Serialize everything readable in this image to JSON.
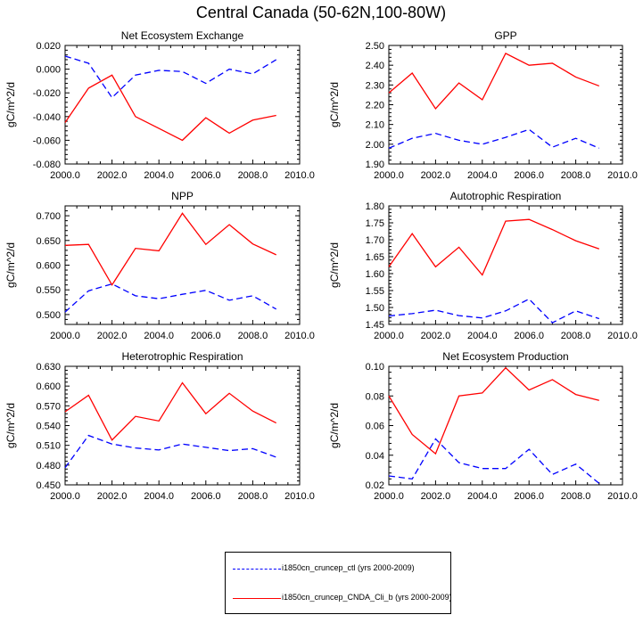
{
  "page_title": "Central Canada (50-62N,100-80W)",
  "series_styles": [
    {
      "color": "#0000ff",
      "dash": "dashed"
    },
    {
      "color": "#ff0000",
      "dash": "solid"
    }
  ],
  "legend": {
    "entries": [
      {
        "label": "i1850cn_cruncep_ctl (yrs 2000-2009)",
        "color": "#0000ff",
        "dash": "dashed"
      },
      {
        "label": "i1850cn_cruncep_CNDA_Cli_b (yrs 2000-2009)",
        "color": "#ff0000",
        "dash": "solid"
      }
    ]
  },
  "chart_data": [
    {
      "type": "line",
      "title": "Net Ecosystem Exchange",
      "ylabel": "gC/m^2/d",
      "xlim": [
        2000,
        2010
      ],
      "ylim": [
        -0.08,
        0.02
      ],
      "xticks": [
        2000,
        2002,
        2004,
        2006,
        2008,
        2010
      ],
      "xtick_labels": [
        "2000.0",
        "2002.0",
        "2004.0",
        "2006.0",
        "2008.0",
        "2010.0"
      ],
      "yticks": [
        -0.08,
        -0.06,
        -0.04,
        -0.02,
        0.0,
        0.02
      ],
      "ytick_labels": [
        "-0.080",
        "-0.060",
        "-0.040",
        "-0.020",
        "0.000",
        "0.020"
      ],
      "x": [
        2000,
        2001,
        2002,
        2003,
        2004,
        2005,
        2006,
        2007,
        2008,
        2009
      ],
      "series": [
        {
          "values": [
            0.011,
            0.005,
            -0.024,
            -0.005,
            -0.001,
            -0.002,
            -0.012,
            0.0,
            -0.004,
            0.008
          ]
        },
        {
          "values": [
            -0.045,
            -0.016,
            -0.005,
            -0.04,
            -0.05,
            -0.06,
            -0.041,
            -0.054,
            -0.043,
            -0.039
          ]
        }
      ]
    },
    {
      "type": "line",
      "title": "GPP",
      "ylabel": "gC/m^2/d",
      "xlim": [
        2000,
        2010
      ],
      "ylim": [
        1.9,
        2.5
      ],
      "xticks": [
        2000,
        2002,
        2004,
        2006,
        2008,
        2010
      ],
      "xtick_labels": [
        "2000.0",
        "2002.0",
        "2004.0",
        "2006.0",
        "2008.0",
        "2010.0"
      ],
      "yticks": [
        1.9,
        2.0,
        2.1,
        2.2,
        2.3,
        2.4,
        2.5
      ],
      "ytick_labels": [
        "1.90",
        "2.00",
        "2.10",
        "2.20",
        "2.30",
        "2.40",
        "2.50"
      ],
      "x": [
        2000,
        2001,
        2002,
        2003,
        2004,
        2005,
        2006,
        2007,
        2008,
        2009
      ],
      "series": [
        {
          "values": [
            1.98,
            2.03,
            2.055,
            2.02,
            2.0,
            2.035,
            2.075,
            1.985,
            2.03,
            1.98
          ]
        },
        {
          "values": [
            2.26,
            2.36,
            2.18,
            2.31,
            2.225,
            2.46,
            2.4,
            2.41,
            2.34,
            2.295
          ]
        }
      ]
    },
    {
      "type": "line",
      "title": "NPP",
      "ylabel": "gC/m^2/d",
      "xlim": [
        2000,
        2010
      ],
      "ylim": [
        0.48,
        0.72
      ],
      "xticks": [
        2000,
        2002,
        2004,
        2006,
        2008,
        2010
      ],
      "xtick_labels": [
        "2000.0",
        "2002.0",
        "2004.0",
        "2006.0",
        "2008.0",
        "2010.0"
      ],
      "yticks": [
        0.5,
        0.55,
        0.6,
        0.65,
        0.7
      ],
      "ytick_labels": [
        "0.500",
        "0.550",
        "0.600",
        "0.650",
        "0.700"
      ],
      "x": [
        2000,
        2001,
        2002,
        2003,
        2004,
        2005,
        2006,
        2007,
        2008,
        2009
      ],
      "series": [
        {
          "values": [
            0.505,
            0.548,
            0.562,
            0.538,
            0.532,
            0.541,
            0.549,
            0.529,
            0.538,
            0.511
          ]
        },
        {
          "values": [
            0.64,
            0.642,
            0.56,
            0.634,
            0.629,
            0.705,
            0.642,
            0.682,
            0.643,
            0.621
          ]
        }
      ]
    },
    {
      "type": "line",
      "title": "Autotrophic Respiration",
      "ylabel": "gC/m^2/d",
      "xlim": [
        2000,
        2010
      ],
      "ylim": [
        1.45,
        1.8
      ],
      "xticks": [
        2000,
        2002,
        2004,
        2006,
        2008,
        2010
      ],
      "xtick_labels": [
        "2000.0",
        "2002.0",
        "2004.0",
        "2006.0",
        "2008.0",
        "2010.0"
      ],
      "yticks": [
        1.45,
        1.5,
        1.55,
        1.6,
        1.65,
        1.7,
        1.75,
        1.8
      ],
      "ytick_labels": [
        "1.45",
        "1.50",
        "1.55",
        "1.60",
        "1.65",
        "1.70",
        "1.75",
        "1.80"
      ],
      "x": [
        2000,
        2001,
        2002,
        2003,
        2004,
        2005,
        2006,
        2007,
        2008,
        2009
      ],
      "series": [
        {
          "values": [
            1.475,
            1.482,
            1.492,
            1.476,
            1.469,
            1.49,
            1.525,
            1.455,
            1.49,
            1.467
          ]
        },
        {
          "values": [
            1.62,
            1.718,
            1.62,
            1.678,
            1.596,
            1.755,
            1.76,
            1.73,
            1.697,
            1.673
          ]
        }
      ]
    },
    {
      "type": "line",
      "title": "Heterotrophic Respiration",
      "ylabel": "gC/m^2/d",
      "xlim": [
        2000,
        2010
      ],
      "ylim": [
        0.45,
        0.63
      ],
      "xticks": [
        2000,
        2002,
        2004,
        2006,
        2008,
        2010
      ],
      "xtick_labels": [
        "2000.0",
        "2002.0",
        "2004.0",
        "2006.0",
        "2008.0",
        "2010.0"
      ],
      "yticks": [
        0.45,
        0.48,
        0.51,
        0.54,
        0.57,
        0.6,
        0.63
      ],
      "ytick_labels": [
        "0.450",
        "0.480",
        "0.510",
        "0.540",
        "0.570",
        "0.600",
        "0.630"
      ],
      "x": [
        2000,
        2001,
        2002,
        2003,
        2004,
        2005,
        2006,
        2007,
        2008,
        2009
      ],
      "series": [
        {
          "values": [
            0.476,
            0.525,
            0.512,
            0.506,
            0.503,
            0.512,
            0.507,
            0.502,
            0.505,
            0.492
          ]
        },
        {
          "values": [
            0.561,
            0.586,
            0.518,
            0.554,
            0.547,
            0.605,
            0.558,
            0.589,
            0.562,
            0.544
          ]
        }
      ]
    },
    {
      "type": "line",
      "title": "Net Ecosystem Production",
      "ylabel": "gC/m^2/d",
      "xlim": [
        2000,
        2010
      ],
      "ylim": [
        0.02,
        0.1
      ],
      "xticks": [
        2000,
        2002,
        2004,
        2006,
        2008,
        2010
      ],
      "xtick_labels": [
        "2000.0",
        "2002.0",
        "2004.0",
        "2006.0",
        "2008.0",
        "2010.0"
      ],
      "yticks": [
        0.02,
        0.04,
        0.06,
        0.08,
        0.1
      ],
      "ytick_labels": [
        "0.02",
        "0.04",
        "0.06",
        "0.08",
        "0.10"
      ],
      "x": [
        2000,
        2001,
        2002,
        2003,
        2004,
        2005,
        2006,
        2007,
        2008,
        2009
      ],
      "series": [
        {
          "values": [
            0.026,
            0.024,
            0.051,
            0.035,
            0.031,
            0.031,
            0.044,
            0.027,
            0.034,
            0.021
          ]
        },
        {
          "values": [
            0.08,
            0.054,
            0.041,
            0.08,
            0.082,
            0.099,
            0.084,
            0.091,
            0.081,
            0.077
          ]
        }
      ]
    }
  ]
}
